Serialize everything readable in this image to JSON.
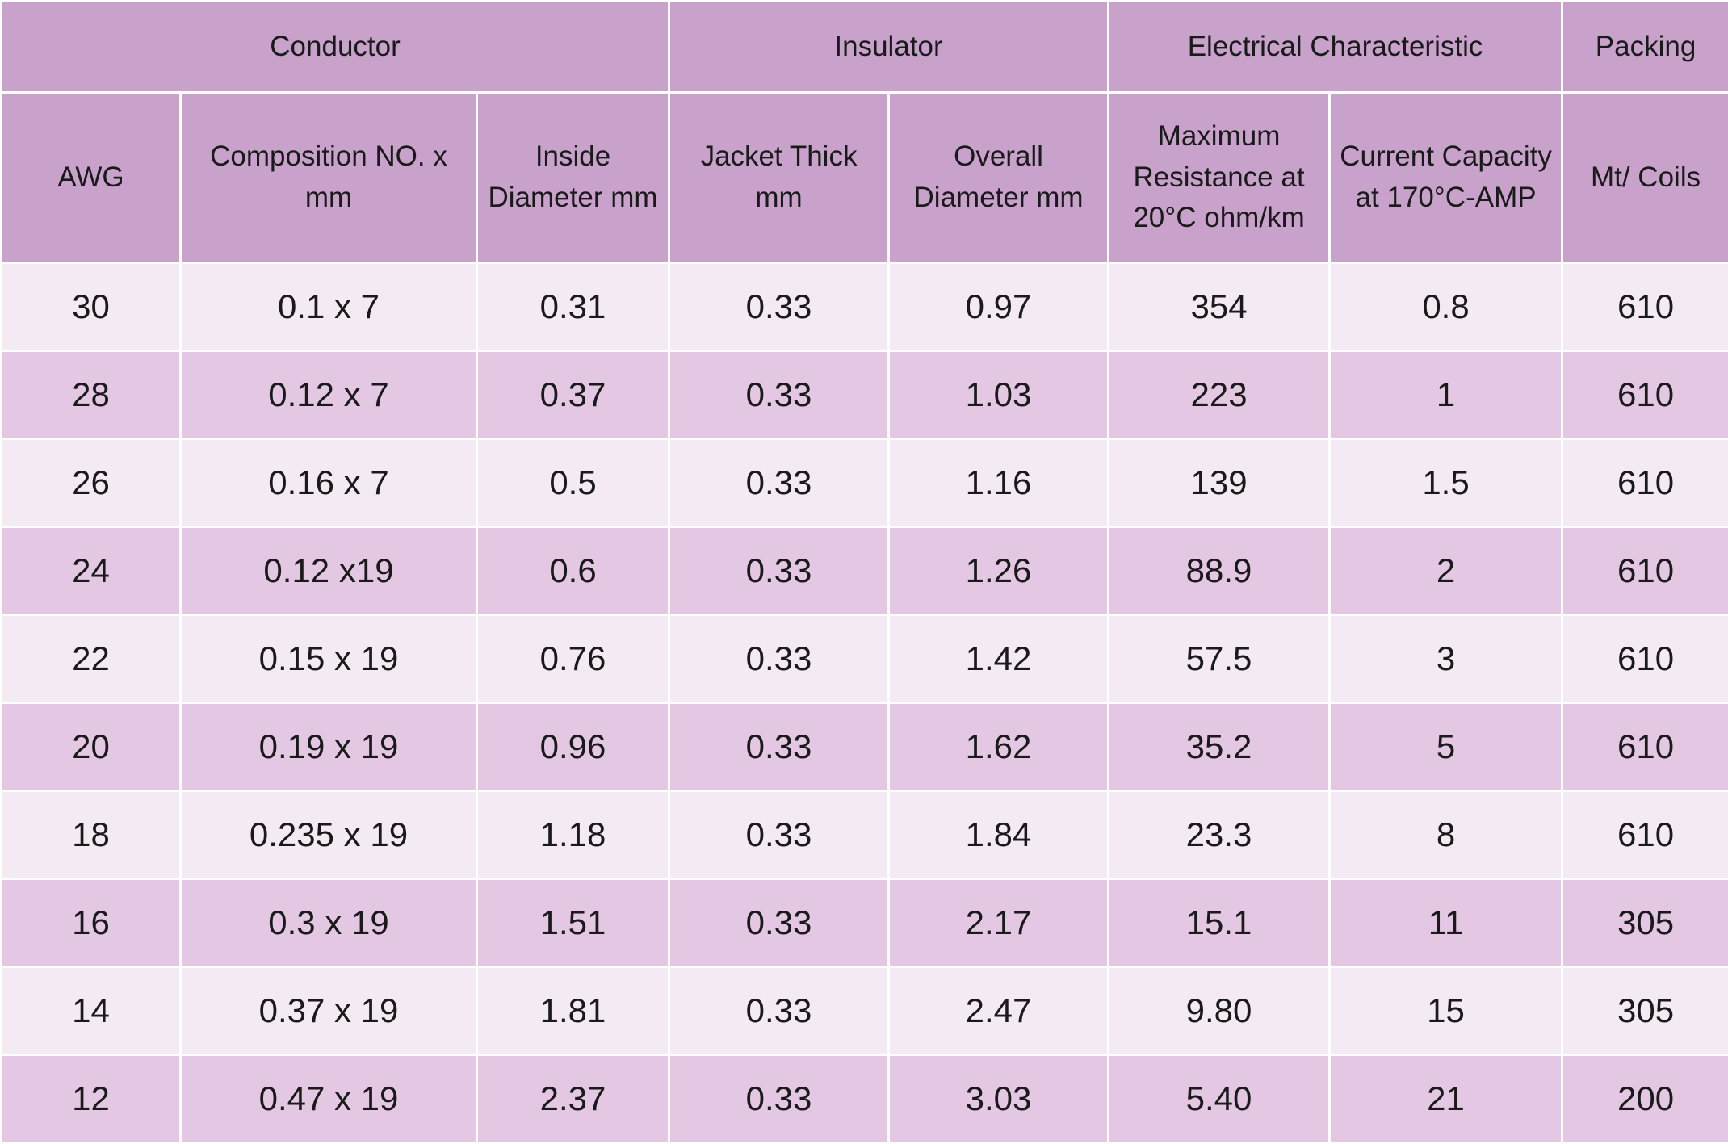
{
  "table": {
    "group_headers": [
      "Conductor",
      "Insulator",
      "Electrical Characteristic",
      "Packing"
    ],
    "headers": [
      "AWG",
      "Composition NO. x mm",
      "Inside Diameter mm",
      "Jacket Thick mm",
      "Overall Diameter mm",
      "Maximum Resistance at 20°C ohm/km",
      "Current Capacity at 170°C-AMP",
      "Mt/ Coils"
    ],
    "rows": [
      [
        "30",
        "0.1 x 7",
        "0.31",
        "0.33",
        "0.97",
        "354",
        "0.8",
        "610"
      ],
      [
        "28",
        "0.12 x 7",
        "0.37",
        "0.33",
        "1.03",
        "223",
        "1",
        "610"
      ],
      [
        "26",
        "0.16 x 7",
        "0.5",
        "0.33",
        "1.16",
        "139",
        "1.5",
        "610"
      ],
      [
        "24",
        "0.12 x19",
        "0.6",
        "0.33",
        "1.26",
        "88.9",
        "2",
        "610"
      ],
      [
        "22",
        "0.15 x 19",
        "0.76",
        "0.33",
        "1.42",
        "57.5",
        "3",
        "610"
      ],
      [
        "20",
        "0.19 x 19",
        "0.96",
        "0.33",
        "1.62",
        "35.2",
        "5",
        "610"
      ],
      [
        "18",
        "0.235 x 19",
        "1.18",
        "0.33",
        "1.84",
        "23.3",
        "8",
        "610"
      ],
      [
        "16",
        "0.3 x 19",
        "1.51",
        "0.33",
        "2.17",
        "15.1",
        "11",
        "305"
      ],
      [
        "14",
        "0.37 x 19",
        "1.81",
        "0.33",
        "2.47",
        "9.80",
        "15",
        "305"
      ],
      [
        "12",
        "0.47 x 19",
        "2.37",
        "0.33",
        "3.03",
        "5.40",
        "21",
        "200"
      ]
    ]
  }
}
